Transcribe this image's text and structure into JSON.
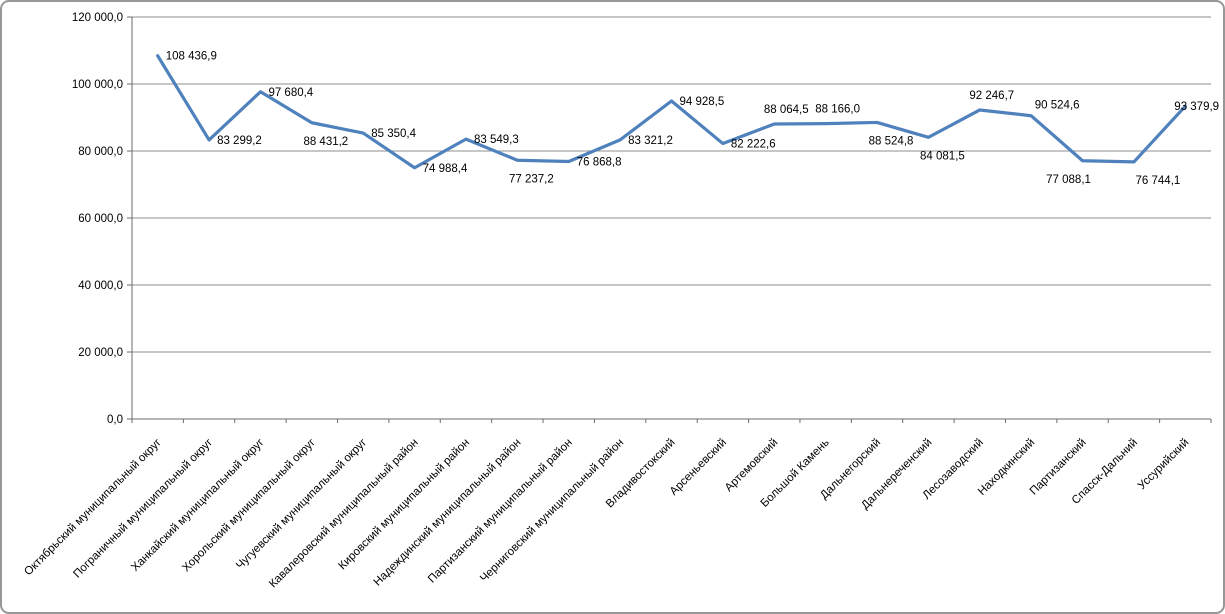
{
  "figure": {
    "background": "#ffffff",
    "border_color": "#979797"
  },
  "chart_data": {
    "type": "line",
    "title": "",
    "xlabel": "",
    "ylabel": "",
    "legend": "none",
    "grid": true,
    "line_color": "#4F81BD",
    "grid_color": "#8f8f8f",
    "axis_color": "#6b6b6b",
    "text_color": "#000000",
    "ylim": [
      0,
      120000
    ],
    "ytick_interval": 20000,
    "yticks": [
      {
        "v": 0,
        "label": "0,0"
      },
      {
        "v": 20000,
        "label": "20 000,0"
      },
      {
        "v": 40000,
        "label": "40 000,0"
      },
      {
        "v": 60000,
        "label": "60 000,0"
      },
      {
        "v": 80000,
        "label": "80 000,0"
      },
      {
        "v": 100000,
        "label": "100 000,0"
      },
      {
        "v": 120000,
        "label": "120 000,0"
      }
    ],
    "categories": [
      "Октябрьский муниципальный округ",
      "Пограничный муниципальный округ",
      "Ханкайский муниципальный округ",
      "Хорольский муниципальный округ",
      "Чугуевский муниципальный округ",
      "Кавалеровский муниципальный район",
      "Кировский муниципальный район",
      "Надеждинский муниципальный район",
      "Партизанский муниципальный район",
      "Черниговский муниципальный район",
      "Владивостокский",
      "Арсеньевский",
      "Артемовский",
      "Большой Камень",
      "Дальнегорский",
      "Дальнереченский",
      "Лесозаводский",
      "Находкинский",
      "Партизанский",
      "Спасск-Дальний",
      "Уссурийский"
    ],
    "values": [
      108436.9,
      83299.2,
      97680.4,
      88431.2,
      85350.4,
      74988.4,
      83549.3,
      77237.2,
      76868.8,
      83321.2,
      94928.5,
      82222.6,
      88064.5,
      88166.0,
      88524.8,
      84081.5,
      92246.7,
      90524.6,
      77088.1,
      76744.1,
      93379.9
    ],
    "value_labels": [
      "108 436,9",
      "83 299,2",
      "97 680,4",
      "88 431,2",
      "85 350,4",
      "74 988,4",
      "83 549,3",
      "77 237,2",
      "76 868,8",
      "83 321,2",
      "94 928,5",
      "82 222,6",
      "88 064,5",
      "88 166,0",
      "88 524,8",
      "84 081,5",
      "92 246,7",
      "90 524,6",
      "77 088,1",
      "76 744,1",
      "93 379,9"
    ],
    "label_positions": [
      "right",
      "right",
      "right",
      "below",
      "right",
      "right",
      "right",
      "below",
      "right",
      "right",
      "right",
      "right",
      "above",
      "above",
      "below",
      "below",
      "above",
      "above-right",
      "below-left",
      "below-right",
      "end"
    ]
  }
}
